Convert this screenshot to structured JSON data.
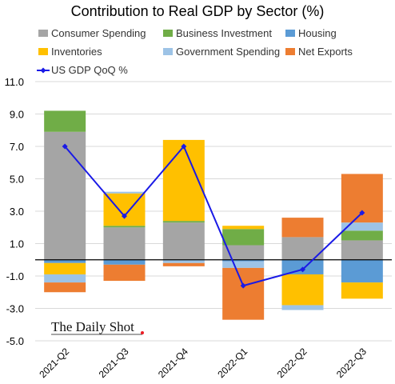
{
  "chart_data": {
    "type": "bar",
    "stacked": true,
    "title": "Contribution to Real GDP by Sector (%)",
    "xlabel": "",
    "ylabel": "",
    "ylim": [
      -5.0,
      11.0
    ],
    "yticks": [
      11.0,
      9.0,
      7.0,
      5.0,
      3.0,
      1.0,
      -1.0,
      -3.0,
      -5.0
    ],
    "ytick_labels": [
      "11.0",
      "9.0",
      "7.0",
      "5.0",
      "3.0",
      "1.0",
      "-1.0",
      "-3.0",
      "-5.0"
    ],
    "grid": true,
    "zero_line": true,
    "legend_position": "top",
    "categories": [
      "2021-Q2",
      "2021-Q3",
      "2021-Q4",
      "2022-Q1",
      "2022-Q2",
      "2022-Q3"
    ],
    "series": [
      {
        "name": "Consumer Spending",
        "color": "#A5A5A5",
        "values": [
          7.9,
          2.0,
          2.3,
          0.9,
          1.4,
          1.2
        ]
      },
      {
        "name": "Business Investment",
        "color": "#70AD47",
        "values": [
          1.3,
          0.1,
          0.1,
          1.0,
          0.0,
          0.6
        ]
      },
      {
        "name": "Housing",
        "color": "#5B9BD5",
        "values": [
          -0.2,
          -0.3,
          0.0,
          -0.1,
          -0.9,
          -1.4
        ]
      },
      {
        "name": "Inventories",
        "color": "#FFC000",
        "values": [
          -0.7,
          2.0,
          5.0,
          0.2,
          -1.9,
          -1.0
        ]
      },
      {
        "name": "Government Spending",
        "color": "#9DC3E6",
        "values": [
          -0.5,
          0.1,
          -0.2,
          -0.4,
          -0.3,
          0.5
        ]
      },
      {
        "name": "Net Exports",
        "color": "#ED7D31",
        "values": [
          -0.6,
          -1.0,
          -0.2,
          -3.2,
          1.2,
          3.0
        ]
      }
    ],
    "line_series": {
      "name": "US GDP QoQ %",
      "color": "#1A1AE6",
      "values": [
        7.0,
        2.7,
        7.0,
        -1.6,
        -0.6,
        2.9
      ]
    },
    "logo_text": "The Daily Shot"
  }
}
